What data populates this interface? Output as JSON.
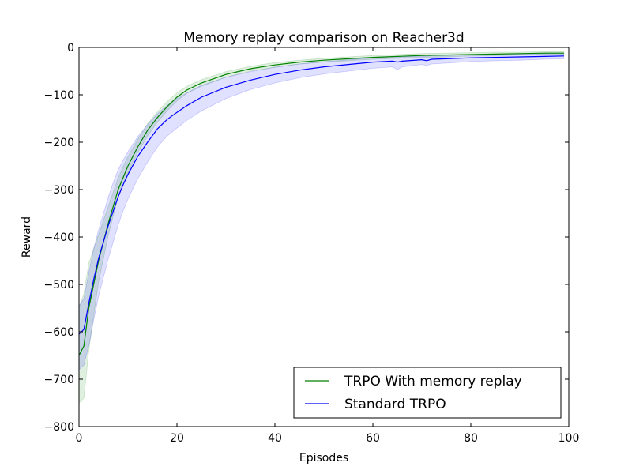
{
  "chart_data": {
    "type": "line",
    "title": "Memory replay comparison on Reacher3d",
    "xlabel": "Episodes",
    "ylabel": "Reward",
    "xlim": [
      0,
      100
    ],
    "ylim": [
      -800,
      0
    ],
    "xticks": [
      0,
      20,
      40,
      60,
      80,
      100
    ],
    "yticks": [
      0,
      -100,
      -200,
      -300,
      -400,
      -500,
      -600,
      -700,
      -800
    ],
    "xtick_labels": [
      "0",
      "20",
      "40",
      "60",
      "80",
      "100"
    ],
    "ytick_labels": [
      "0",
      "−100",
      "−200",
      "−300",
      "−400",
      "−500",
      "−600",
      "−700",
      "−800"
    ],
    "grid": false,
    "legend_position": "bottom-right",
    "series": [
      {
        "name": "TRPO With memory replay",
        "color": "#008000",
        "band_color": "#008000",
        "x": [
          0,
          1,
          2,
          3,
          4,
          5,
          6,
          7,
          8,
          9,
          10,
          12,
          14,
          16,
          18,
          20,
          22,
          25,
          30,
          35,
          40,
          45,
          50,
          55,
          60,
          65,
          70,
          75,
          80,
          85,
          90,
          95,
          99
        ],
        "y": [
          -650,
          -630,
          -550,
          -500,
          -450,
          -410,
          -370,
          -335,
          -300,
          -275,
          -250,
          -210,
          -175,
          -148,
          -125,
          -105,
          -90,
          -75,
          -57,
          -45,
          -37,
          -31,
          -27,
          -24,
          -21,
          -19,
          -17,
          -16,
          -15,
          -14,
          -13,
          -12,
          -12
        ],
        "lower": [
          -750,
          -740,
          -640,
          -565,
          -495,
          -445,
          -395,
          -355,
          -318,
          -290,
          -265,
          -222,
          -187,
          -158,
          -134,
          -113,
          -97,
          -82,
          -63,
          -50,
          -42,
          -35,
          -31,
          -28,
          -25,
          -23,
          -21,
          -20,
          -18,
          -17,
          -16,
          -15,
          -15
        ],
        "upper": [
          -550,
          -520,
          -455,
          -425,
          -395,
          -365,
          -335,
          -305,
          -275,
          -252,
          -230,
          -194,
          -161,
          -136,
          -114,
          -96,
          -82,
          -68,
          -51,
          -40,
          -32,
          -27,
          -23,
          -20,
          -17,
          -15,
          -13,
          -12,
          -11,
          -10,
          -10,
          -9,
          -9
        ]
      },
      {
        "name": "Standard TRPO",
        "color": "#0000ff",
        "band_color": "#0000ff",
        "x": [
          0,
          1,
          2,
          3,
          4,
          5,
          6,
          7,
          8,
          9,
          10,
          12,
          14,
          16,
          18,
          20,
          22,
          25,
          30,
          35,
          40,
          45,
          50,
          55,
          60,
          64,
          65,
          66,
          70,
          71,
          72,
          75,
          80,
          85,
          90,
          95,
          99
        ],
        "y": [
          -605,
          -595,
          -540,
          -490,
          -445,
          -410,
          -375,
          -345,
          -315,
          -290,
          -268,
          -230,
          -200,
          -172,
          -152,
          -137,
          -123,
          -105,
          -84,
          -69,
          -57,
          -48,
          -41,
          -36,
          -31,
          -29,
          -31,
          -29,
          -26,
          -28,
          -25,
          -24,
          -22,
          -21,
          -20,
          -19,
          -18
        ],
        "lower": [
          -680,
          -670,
          -630,
          -575,
          -525,
          -485,
          -445,
          -410,
          -375,
          -345,
          -320,
          -277,
          -242,
          -210,
          -187,
          -170,
          -154,
          -134,
          -108,
          -89,
          -75,
          -64,
          -56,
          -50,
          -44,
          -41,
          -47,
          -41,
          -36,
          -38,
          -35,
          -33,
          -30,
          -28,
          -27,
          -25,
          -24
        ],
        "upper": [
          -545,
          -530,
          -475,
          -425,
          -385,
          -350,
          -315,
          -285,
          -258,
          -238,
          -220,
          -188,
          -163,
          -140,
          -122,
          -108,
          -96,
          -80,
          -63,
          -51,
          -42,
          -35,
          -30,
          -26,
          -22,
          -20,
          -20,
          -20,
          -18,
          -19,
          -17,
          -16,
          -15,
          -14,
          -14,
          -13,
          -12
        ]
      }
    ]
  }
}
